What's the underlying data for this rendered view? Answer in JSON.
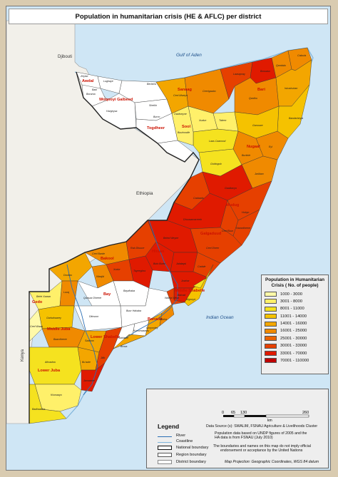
{
  "map": {
    "title": "Population in humanitarian crisis (HE & AFLC)  per district",
    "background_color": "#f2efe9",
    "sea_color": "#cfe6f5",
    "neighbor_land_color": "#f2f0ea",
    "water_labels": {
      "gulf": "Gulf of Aden",
      "ocean": "Indian Ocean"
    },
    "country_labels": {
      "djibouti": "Djibouti",
      "ethiopia": "Ethiopia",
      "kenya": "Kenya"
    },
    "region_labels": [
      "Awdal",
      "Woqooyi Galbeed",
      "Togdheer",
      "Sanaag",
      "Sool",
      "Bari",
      "Nugaal",
      "Mudug",
      "Galgaduud",
      "Hiraan",
      "Middle Shabelle",
      "Bakool",
      "Bay",
      "Gedo",
      "Lower Shabelle",
      "Middle Juba",
      "Lower Juba",
      "Banadir"
    ],
    "district_labels": [
      "Zeylac",
      "Lughaye",
      "Baki",
      "Borama",
      "Berbera",
      "Sheikh",
      "Hargeysa",
      "Burco",
      "Owdweyne",
      "Buuhoodle",
      "Laas Caanood",
      "Taleex",
      "Xudun",
      "Ceel Afweyn",
      "Ceerigaabo",
      "Laasqoray",
      "Qardho",
      "Bossaso",
      "Qandala",
      "Caluula",
      "Iskushuban",
      "Bandarbeyla",
      "Garoowe",
      "Eyl",
      "Burtinle",
      "Jariiban",
      "Gaalkacyo",
      "Goldogob",
      "Hobyo",
      "Cadaado",
      "Dhuusamarreeb",
      "Ceel Buur",
      "Ceel Dheer",
      "Harardheere",
      "Beled Weyne",
      "Bulo Burto",
      "Jalalaqsi",
      "Cadale",
      "Jowhar",
      "Balcad",
      "Ceel Barde",
      "Xudur",
      "Waajid",
      "Tayeeglow",
      "Rab Dhuure",
      "Baydhaba",
      "Qansax Dheere",
      "Diinsoor",
      "Buur Hakaba",
      "Belet Xaawo",
      "Ceel Waaq",
      "Garbahaarey",
      "Doolow",
      "Luuq",
      "Baardheere",
      "Saakow",
      "Bu'aale",
      "Jilib",
      "Afmadow",
      "Kismaayo",
      "Badhaadhe",
      "Jamaame",
      "Marka",
      "Kurtunwaarey",
      "Qoryooley",
      "Sablaale",
      "Brava",
      "Wanla Weyn",
      "Afgooye"
    ]
  },
  "chart_data": {
    "type": "map",
    "title": "Population in humanitarian crisis (HE & AFLC)  per district",
    "legend_title": "Population in Humanitarian Crisis ( No. of people)",
    "legend_classes": [
      {
        "label": "1000 - 3000",
        "color": "#fff9a8"
      },
      {
        "label": "3001 - 8000",
        "color": "#fff06a"
      },
      {
        "label": "8001 - 11000",
        "color": "#f5e21f"
      },
      {
        "label": "11001 - 14000",
        "color": "#f5c200"
      },
      {
        "label": "14001 - 16000",
        "color": "#f3a600"
      },
      {
        "label": "16001 - 25000",
        "color": "#f08a00"
      },
      {
        "label": "25001 - 30000",
        "color": "#ec6400"
      },
      {
        "label": "30001 - 33000",
        "color": "#e64000"
      },
      {
        "label": "33001 - 70000",
        "color": "#e01a00"
      },
      {
        "label": "70001 - 110000",
        "color": "#c00000"
      }
    ],
    "no_data_color": "#ffffff"
  },
  "legend": {
    "title": "Legend",
    "items": [
      "River",
      "Coastline",
      "National boundary",
      "Region boundary",
      "District boundary"
    ],
    "river_color": "#2a6fb5"
  },
  "scale": {
    "ticks": [
      "0",
      "65",
      "130",
      "260"
    ],
    "unit": "km"
  },
  "source": {
    "data_source": "Data Source (s): SWALIM, FSNAU Agriculture & Livelihoods Cluster",
    "note1": "Population data based on UNDP figures of 2005 and the",
    "note2": "HA data is from FSNAU (July 2010)",
    "disclaimer1": "The boundaries and names on this map do not imply official",
    "disclaimer2": "endorsement or acceptance by the United Nations",
    "projection": "Map Projection: Geographic Coordinates, WGS 84 datum"
  }
}
